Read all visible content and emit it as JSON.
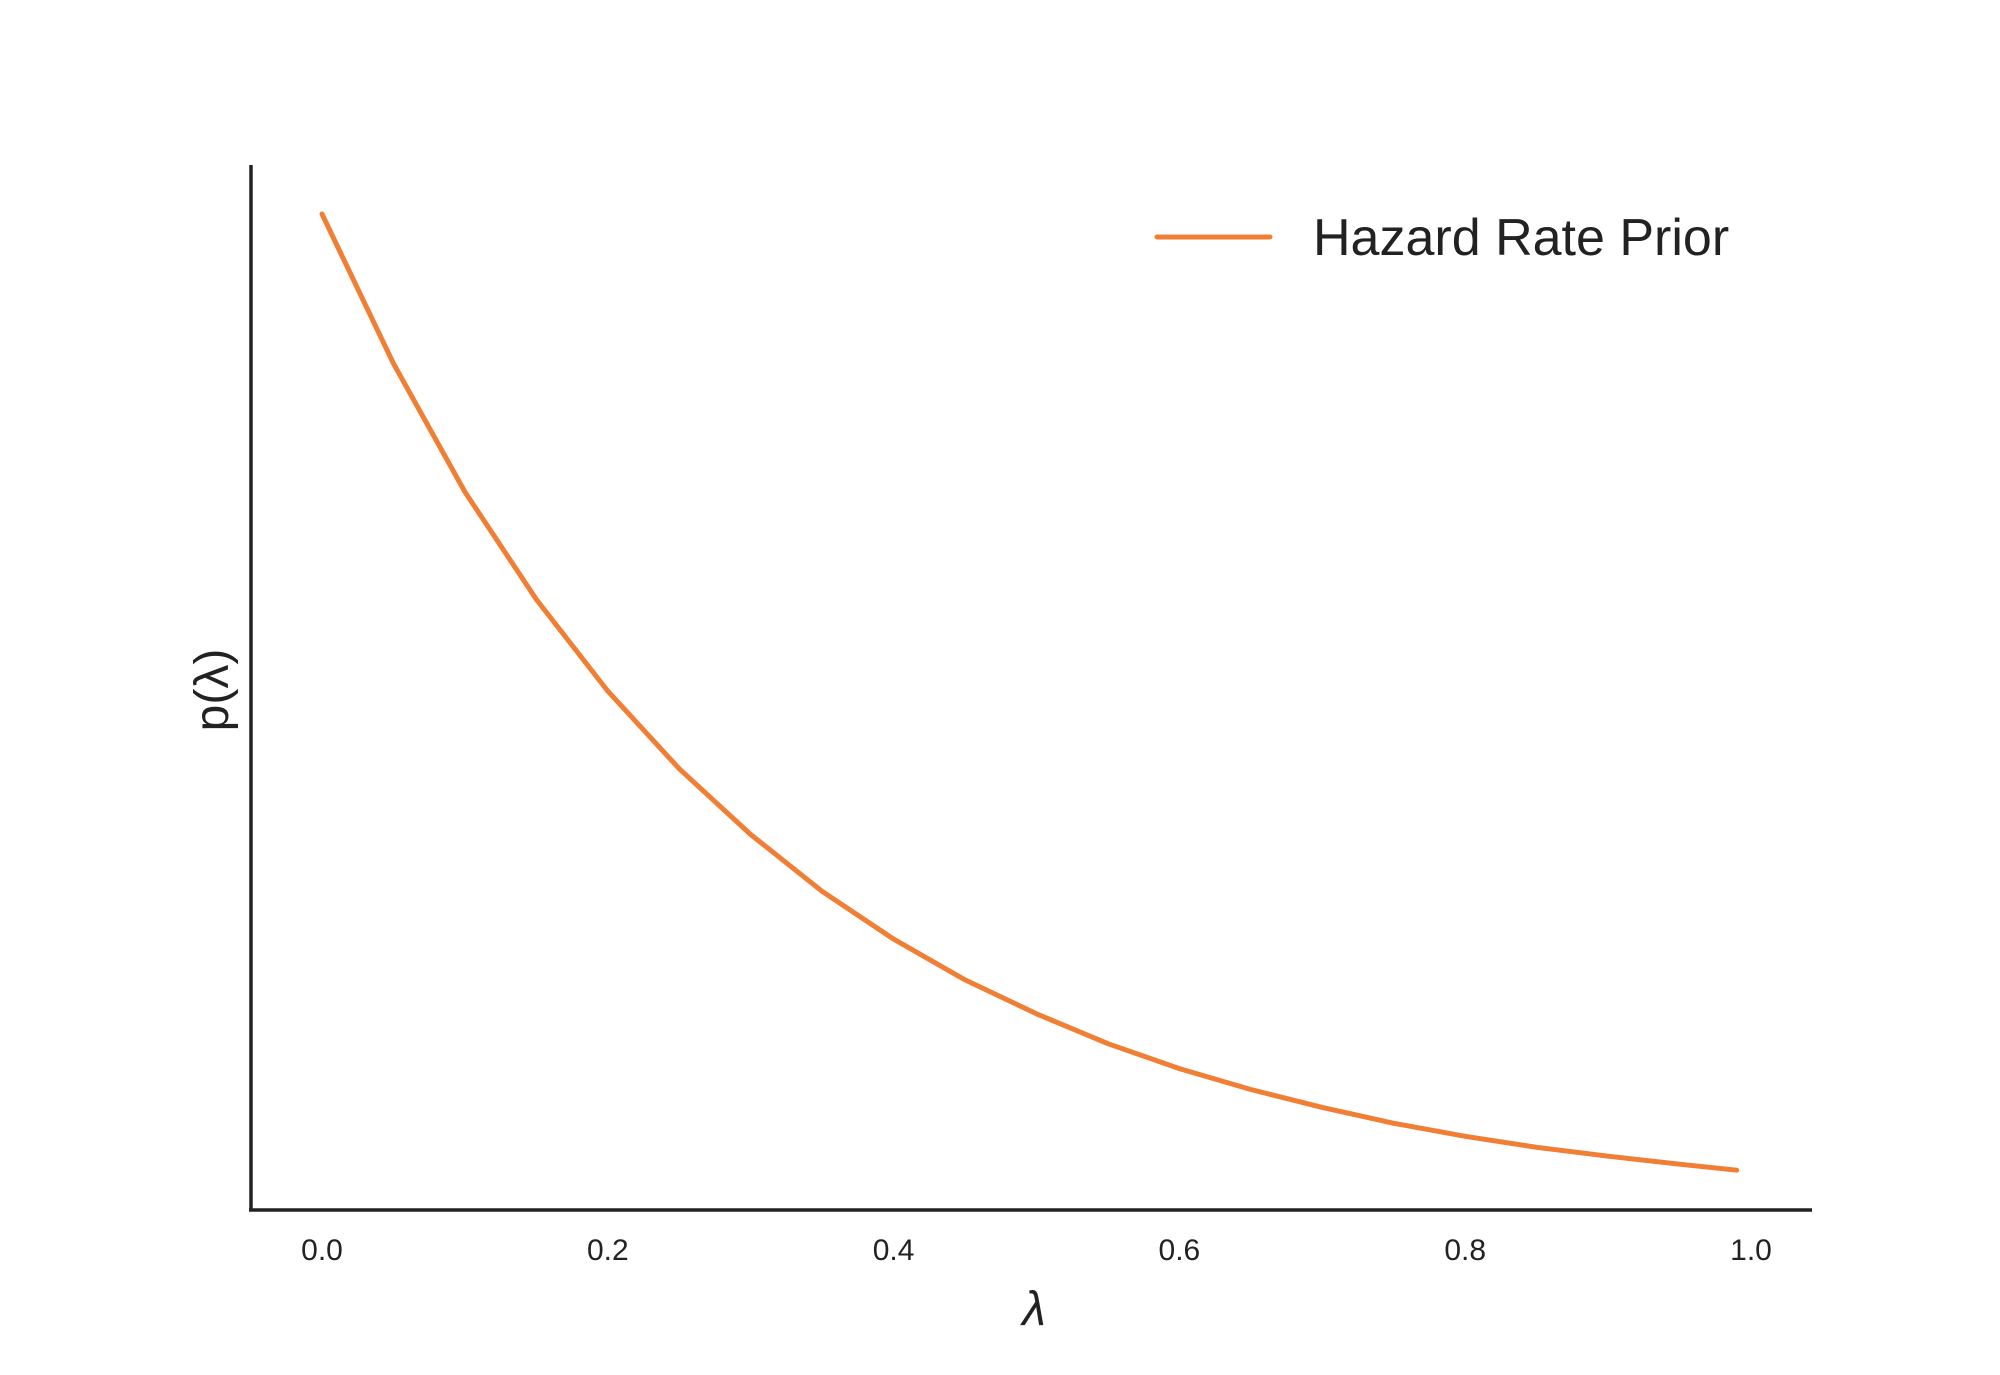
{
  "chart_data": {
    "type": "line",
    "title": "",
    "xlabel": "λ",
    "ylabel": "p(λ)",
    "xlim": [
      -0.05,
      1.04
    ],
    "ylim": [
      0.0,
      1.05
    ],
    "xticks": [
      0.0,
      0.2,
      0.4,
      0.6,
      0.8,
      1.0
    ],
    "xtick_labels": [
      "0.0",
      "0.2",
      "0.4",
      "0.6",
      "0.8",
      "1.0"
    ],
    "yticks": [],
    "grid": false,
    "legend_position": "top-right",
    "series": [
      {
        "name": "Hazard Rate Prior",
        "color": "#f07f35",
        "x": [
          0.0,
          0.05,
          0.1,
          0.15,
          0.2,
          0.25,
          0.3,
          0.35,
          0.4,
          0.45,
          0.5,
          0.55,
          0.6,
          0.65,
          0.7,
          0.75,
          0.8,
          0.85,
          0.9,
          0.95,
          0.99
        ],
        "y": [
          1.0,
          0.85,
          0.721,
          0.613,
          0.521,
          0.443,
          0.377,
          0.32,
          0.272,
          0.231,
          0.197,
          0.167,
          0.142,
          0.121,
          0.103,
          0.087,
          0.074,
          0.063,
          0.054,
          0.046,
          0.04
        ]
      }
    ]
  }
}
